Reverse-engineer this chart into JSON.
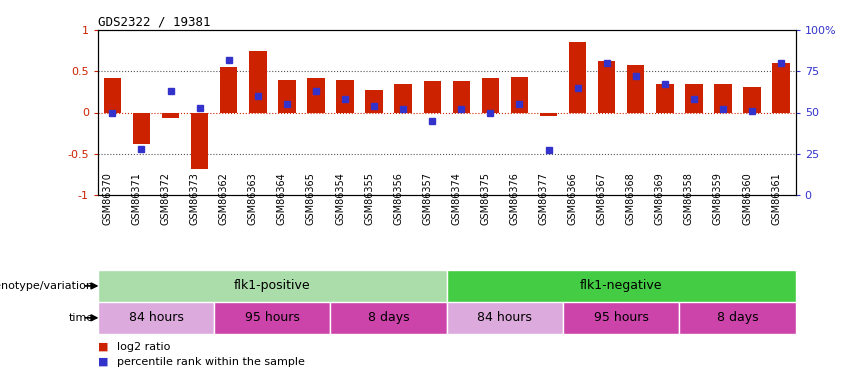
{
  "title": "GDS2322 / 19381",
  "samples": [
    "GSM86370",
    "GSM86371",
    "GSM86372",
    "GSM86373",
    "GSM86362",
    "GSM86363",
    "GSM86364",
    "GSM86365",
    "GSM86354",
    "GSM86355",
    "GSM86356",
    "GSM86357",
    "GSM86374",
    "GSM86375",
    "GSM86376",
    "GSM86377",
    "GSM86366",
    "GSM86367",
    "GSM86368",
    "GSM86369",
    "GSM86358",
    "GSM86359",
    "GSM86360",
    "GSM86361"
  ],
  "log2_ratio": [
    0.42,
    -0.38,
    -0.07,
    -0.68,
    0.55,
    0.75,
    0.39,
    0.42,
    0.39,
    0.27,
    0.35,
    0.38,
    0.38,
    0.42,
    0.43,
    -0.04,
    0.85,
    0.62,
    0.58,
    0.34,
    0.35,
    0.35,
    0.31,
    0.6
  ],
  "percentile": [
    0.5,
    0.28,
    0.63,
    0.53,
    0.82,
    0.6,
    0.55,
    0.63,
    0.58,
    0.54,
    0.52,
    0.45,
    0.52,
    0.5,
    0.55,
    0.27,
    0.65,
    0.8,
    0.72,
    0.67,
    0.58,
    0.52,
    0.51,
    0.8
  ],
  "bar_color": "#cc2200",
  "dot_color": "#3333cc",
  "ylim_left": [
    -1,
    1
  ],
  "ylim_right": [
    0,
    100
  ],
  "yticks_left": [
    -1,
    -0.5,
    0,
    0.5,
    1
  ],
  "yticks_right": [
    0,
    25,
    50,
    75,
    100
  ],
  "ytick_labels_left": [
    "-1",
    "-0.5",
    "0",
    "0.5",
    "1"
  ],
  "ytick_labels_right": [
    "0",
    "25",
    "50",
    "75",
    "100%"
  ],
  "dotted_lines": [
    -0.5,
    0,
    0.5
  ],
  "genotype_label": "genotype/variation",
  "time_label": "time",
  "genotype_groups": [
    {
      "label": "flk1-positive",
      "start": 0,
      "end": 11,
      "color": "#aaddaa"
    },
    {
      "label": "flk1-negative",
      "start": 12,
      "end": 23,
      "color": "#44cc44"
    }
  ],
  "time_groups": [
    {
      "label": "84 hours",
      "start": 0,
      "end": 3,
      "color": "#ddaadd"
    },
    {
      "label": "95 hours",
      "start": 4,
      "end": 7,
      "color": "#cc44aa"
    },
    {
      "label": "8 days",
      "start": 8,
      "end": 11,
      "color": "#cc44aa"
    },
    {
      "label": "84 hours",
      "start": 12,
      "end": 15,
      "color": "#ddaadd"
    },
    {
      "label": "95 hours",
      "start": 16,
      "end": 19,
      "color": "#cc44aa"
    },
    {
      "label": "8 days",
      "start": 20,
      "end": 23,
      "color": "#cc44aa"
    }
  ],
  "legend_log2": "log2 ratio",
  "legend_pct": "percentile rank within the sample",
  "bg_color": "#ffffff"
}
